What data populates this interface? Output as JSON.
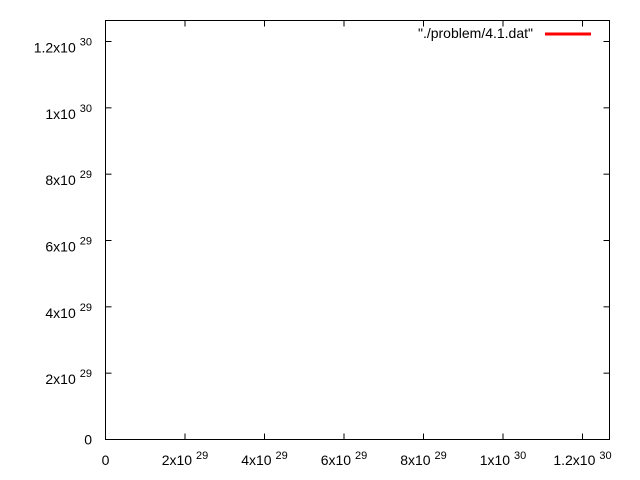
{
  "chart_data": {
    "type": "line",
    "title": "",
    "xlabel": "",
    "ylabel": "",
    "xlim": [
      0,
      1.3e+30
    ],
    "ylim": [
      0,
      1.3e+30
    ],
    "grid": false,
    "legend_position": "top-right",
    "x_ticks": [
      {
        "value": 0,
        "mantissa": "0",
        "exponent": ""
      },
      {
        "value": 2e+29,
        "mantissa": "2x10",
        "exponent": "29"
      },
      {
        "value": 4e+29,
        "mantissa": "4x10",
        "exponent": "29"
      },
      {
        "value": 6e+29,
        "mantissa": "6x10",
        "exponent": "29"
      },
      {
        "value": 8e+29,
        "mantissa": "8x10",
        "exponent": "29"
      },
      {
        "value": 1e+30,
        "mantissa": "1x10",
        "exponent": "30"
      },
      {
        "value": 1.2e+30,
        "mantissa": "1.2x10",
        "exponent": "30"
      }
    ],
    "y_ticks": [
      {
        "value": 0,
        "mantissa": "0",
        "exponent": ""
      },
      {
        "value": 2e+29,
        "mantissa": "2x10",
        "exponent": "29"
      },
      {
        "value": 4e+29,
        "mantissa": "4x10",
        "exponent": "29"
      },
      {
        "value": 6e+29,
        "mantissa": "6x10",
        "exponent": "29"
      },
      {
        "value": 8e+29,
        "mantissa": "8x10",
        "exponent": "29"
      },
      {
        "value": 1e+30,
        "mantissa": "1x10",
        "exponent": "30"
      },
      {
        "value": 1.2e+30,
        "mantissa": "1.2x10",
        "exponent": "30"
      }
    ],
    "series": [
      {
        "name": "\"./problem/4.1.dat\"",
        "color": "#ff0000",
        "points": []
      }
    ]
  }
}
